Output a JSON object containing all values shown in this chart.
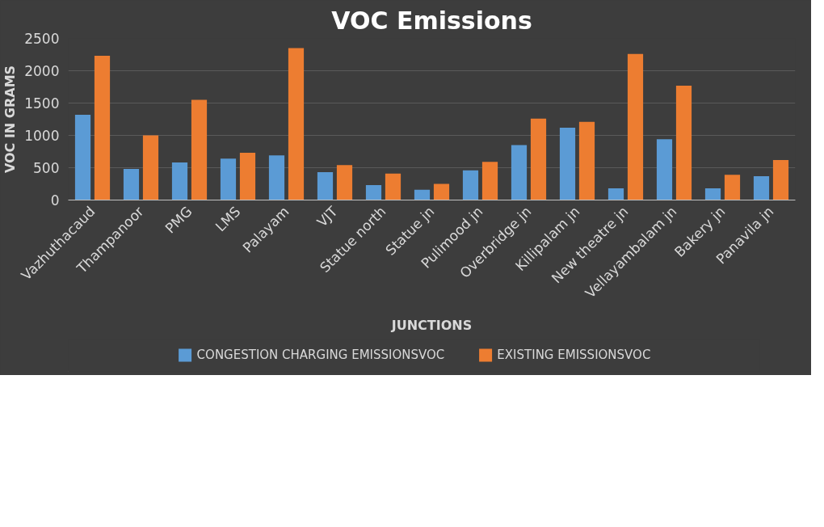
{
  "chart_data": {
    "type": "bar",
    "title": "VOC Emissions",
    "xlabel": "JUNCTIONS",
    "ylabel": "VOC IN GRAMS",
    "categories": [
      "Vazhuthacaud",
      "Thampanoor",
      "PMG",
      "LMS",
      "Palayam",
      "VJT",
      "Statue north",
      "Statue jn",
      "Pulimood jn",
      "Overbridge jn",
      "Killipalam jn",
      "New theatre jn",
      "Vellayambalam jn",
      "Bakery jn",
      "Panavila jn"
    ],
    "series": [
      {
        "name": "CONGESTION CHARGING EMISSIONSVOC",
        "color": "#5b9bd5",
        "values": [
          1320,
          480,
          580,
          640,
          690,
          430,
          230,
          160,
          460,
          850,
          1120,
          180,
          940,
          180,
          370
        ]
      },
      {
        "name": "EXISTING EMISSIONSVOC",
        "color": "#ed7d31",
        "values": [
          2230,
          1000,
          1550,
          730,
          2350,
          540,
          410,
          250,
          590,
          1260,
          1210,
          2260,
          1770,
          390,
          620
        ]
      }
    ],
    "ylim": [
      0,
      2500
    ],
    "yticks": [
      0,
      500,
      1000,
      1500,
      2000,
      2500
    ],
    "grid": "y",
    "legend": "bottom"
  }
}
